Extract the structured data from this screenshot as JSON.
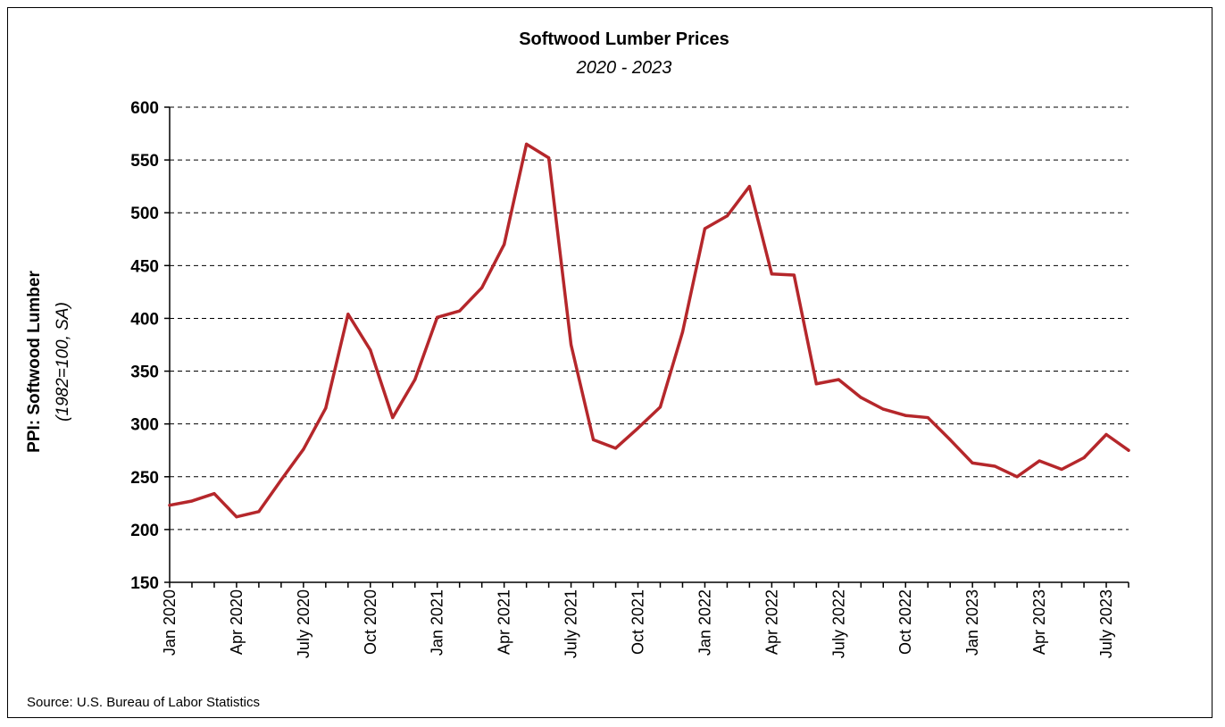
{
  "chart_data": {
    "type": "line",
    "title": "Softwood Lumber Prices",
    "subtitle": "2020 - 2023",
    "ylabel": "PPI: Softwood Lumber",
    "ylabel_unit": "(1982=100, SA)",
    "source": "Source: U.S. Bureau of Labor Statistics",
    "ylim": [
      150,
      600
    ],
    "yticks": [
      150,
      200,
      250,
      300,
      350,
      400,
      450,
      500,
      550,
      600
    ],
    "grid": true,
    "legend": "none",
    "series_color": "#b5272b",
    "xtick_labels": [
      {
        "index": 0,
        "label": "Jan 2020"
      },
      {
        "index": 3,
        "label": "Apr 2020"
      },
      {
        "index": 6,
        "label": "July 2020"
      },
      {
        "index": 9,
        "label": "Oct 2020"
      },
      {
        "index": 12,
        "label": "Jan 2021"
      },
      {
        "index": 15,
        "label": "Apr 2021"
      },
      {
        "index": 18,
        "label": "July 2021"
      },
      {
        "index": 21,
        "label": "Oct 2021"
      },
      {
        "index": 24,
        "label": "Jan 2022"
      },
      {
        "index": 27,
        "label": "Apr 2022"
      },
      {
        "index": 30,
        "label": "July 2022"
      },
      {
        "index": 33,
        "label": "Oct 2022"
      },
      {
        "index": 36,
        "label": "Jan 2023"
      },
      {
        "index": 39,
        "label": "Apr 2023"
      },
      {
        "index": 42,
        "label": "July 2023"
      }
    ],
    "x": [
      "2020-01",
      "2020-02",
      "2020-03",
      "2020-04",
      "2020-05",
      "2020-06",
      "2020-07",
      "2020-08",
      "2020-09",
      "2020-10",
      "2020-11",
      "2020-12",
      "2021-01",
      "2021-02",
      "2021-03",
      "2021-04",
      "2021-05",
      "2021-06",
      "2021-07",
      "2021-08",
      "2021-09",
      "2021-10",
      "2021-11",
      "2021-12",
      "2022-01",
      "2022-02",
      "2022-03",
      "2022-04",
      "2022-05",
      "2022-06",
      "2022-07",
      "2022-08",
      "2022-09",
      "2022-10",
      "2022-11",
      "2022-12",
      "2023-01",
      "2023-02",
      "2023-03",
      "2023-04",
      "2023-05",
      "2023-06",
      "2023-07",
      "2023-08"
    ],
    "values": [
      223,
      227,
      234,
      212,
      217,
      247,
      276,
      315,
      404,
      370,
      306,
      342,
      401,
      407,
      429,
      470,
      565,
      552,
      375,
      285,
      277,
      296,
      316,
      387,
      485,
      497,
      525,
      442,
      441,
      338,
      342,
      325,
      314,
      308,
      306,
      285,
      263,
      260,
      250,
      265,
      257,
      268,
      290,
      275
    ]
  }
}
